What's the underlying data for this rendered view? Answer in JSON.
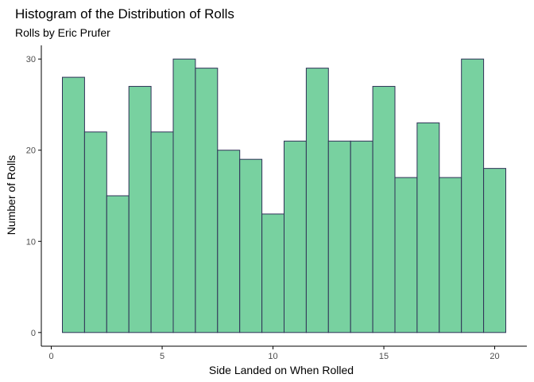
{
  "chart_data": {
    "type": "bar",
    "title": "Histogram of the Distribution of Rolls",
    "subtitle": "Rolls by Eric Prufer",
    "xlabel": "Side Landed on When Rolled",
    "ylabel": "Number of Rolls",
    "categories": [
      1,
      2,
      3,
      4,
      5,
      6,
      7,
      8,
      9,
      10,
      11,
      12,
      13,
      14,
      15,
      16,
      17,
      18,
      19,
      20
    ],
    "values": [
      28,
      22,
      15,
      27,
      22,
      30,
      29,
      20,
      19,
      13,
      21,
      29,
      21,
      21,
      27,
      17,
      23,
      17,
      30,
      18
    ],
    "xlim": [
      -0.45,
      21.45
    ],
    "ylim": [
      -1.5,
      31.5
    ],
    "xticks": [
      0,
      5,
      10,
      15,
      20
    ],
    "yticks": [
      0,
      10,
      20,
      30
    ],
    "grid": false,
    "colors": {
      "bar_fill": "#78d1a0",
      "bar_stroke": "#2f3157",
      "axis": "#000000",
      "tick_label": "#4d4d4d"
    }
  }
}
